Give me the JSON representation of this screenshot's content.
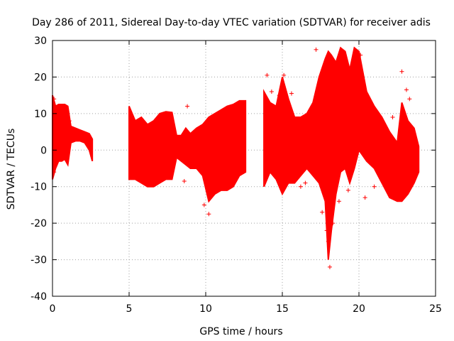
{
  "chart_data": {
    "type": "scatter",
    "title": "Day 286 of 2011, Sidereal Day-to-day VTEC variation (SDTVAR) for receiver adis",
    "xlabel": "GPS time / hours",
    "ylabel": "SDTVAR / TECUs",
    "xlim": [
      0,
      25
    ],
    "ylim": [
      -40,
      30
    ],
    "xticks": [
      0,
      5,
      10,
      15,
      20,
      25
    ],
    "yticks": [
      -40,
      -30,
      -20,
      -10,
      0,
      10,
      20,
      30
    ],
    "grid": true,
    "marker": "+",
    "color": "#ff0000",
    "series": [
      {
        "segments": [
          {
            "x": [
              0.0,
              0.2,
              0.4,
              0.6,
              0.8,
              1.0,
              1.2,
              1.5,
              1.8,
              2.1,
              2.4,
              2.6
            ],
            "upper": [
              15,
              12,
              12.5,
              12.5,
              12.5,
              12,
              6.5,
              6,
              5.5,
              5,
              4.5,
              3
            ],
            "lower": [
              -8,
              -5,
              -3,
              -3,
              -2.5,
              -4,
              2,
              2.5,
              2.5,
              2,
              0,
              -3
            ]
          },
          {
            "x": [
              5.0,
              5.4,
              5.8,
              6.2,
              6.6,
              7.0,
              7.4,
              7.8,
              8.1,
              8.4,
              8.7,
              9.0,
              9.4,
              9.8,
              10.2,
              10.6,
              11.0,
              11.4,
              11.8,
              12.2,
              12.6
            ],
            "upper": [
              12,
              8,
              9,
              7,
              8,
              10,
              10.5,
              10.3,
              4,
              4,
              6,
              4.5,
              6,
              7,
              9,
              10,
              11,
              12,
              12.5,
              13.5,
              13.5
            ],
            "lower": [
              -8,
              -8,
              -9,
              -10,
              -10,
              -9,
              -8,
              -8,
              -2,
              -3,
              -4,
              -5,
              -5,
              -7,
              -14,
              -12,
              -11,
              -11,
              -10,
              -7,
              -6
            ]
          },
          {
            "x": [
              13.8,
              14.2,
              14.6,
              15.0,
              15.4,
              15.8,
              16.2,
              16.6,
              17.0,
              17.4,
              17.8,
              18.0,
              18.2,
              18.5,
              18.8,
              19.1,
              19.4,
              19.7,
              20.0,
              20.5,
              21.0,
              21.5,
              22.0,
              22.5,
              22.8,
              23.2,
              23.6,
              23.9
            ],
            "upper": [
              16,
              13,
              12,
              20,
              14,
              9,
              9,
              10,
              13,
              20,
              25,
              27,
              26,
              24,
              28,
              27,
              22,
              28,
              27,
              16,
              12,
              9,
              5,
              2,
              13,
              8,
              6,
              1
            ],
            "lower": [
              -10,
              -6,
              -8,
              -12,
              -9,
              -9,
              -7,
              -5,
              -7,
              -9,
              -14,
              -30,
              -22,
              -12,
              -6,
              -5,
              -9,
              -5,
              0,
              -3,
              -5,
              -9,
              -13,
              -14,
              -14,
              -12,
              -9,
              -6
            ]
          }
        ],
        "outliers": [
          [
            0.1,
            -6
          ],
          [
            0.1,
            14
          ],
          [
            1.1,
            8
          ],
          [
            8.6,
            -8.5
          ],
          [
            8.8,
            12
          ],
          [
            9.9,
            -15
          ],
          [
            10.2,
            -17.5
          ],
          [
            14.0,
            20.5
          ],
          [
            14.3,
            16
          ],
          [
            14.8,
            15
          ],
          [
            15.1,
            20.5
          ],
          [
            15.6,
            15.5
          ],
          [
            16.2,
            -10
          ],
          [
            16.5,
            -9
          ],
          [
            17.2,
            27.5
          ],
          [
            17.6,
            -17
          ],
          [
            17.9,
            -22
          ],
          [
            18.0,
            -25
          ],
          [
            18.1,
            -32
          ],
          [
            18.3,
            -20
          ],
          [
            18.7,
            -14
          ],
          [
            19.3,
            -11
          ],
          [
            20.1,
            26
          ],
          [
            20.4,
            -13
          ],
          [
            21.0,
            -10
          ],
          [
            22.2,
            9
          ],
          [
            22.8,
            21.5
          ],
          [
            23.1,
            16.5
          ],
          [
            23.3,
            14
          ],
          [
            23.5,
            2
          ]
        ]
      }
    ]
  }
}
